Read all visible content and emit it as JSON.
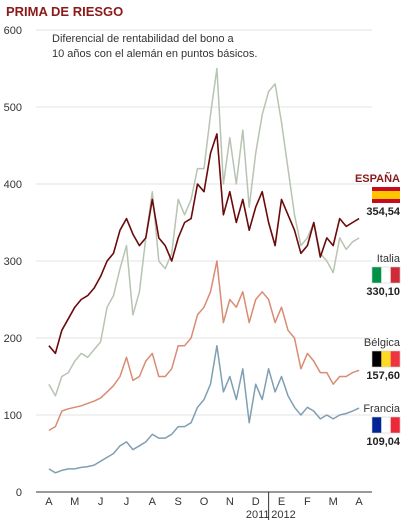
{
  "chart_data": {
    "type": "line",
    "title": "PRIMA DE RIESGO",
    "subtitle_lines": [
      "Diferencial de rentabilidad del bono a",
      "10 años  con el alemán en puntos básicos."
    ],
    "ylim": [
      0,
      600
    ],
    "yticks": [
      0,
      100,
      200,
      300,
      400,
      500,
      600
    ],
    "month_labels": [
      "A",
      "M",
      "J",
      "J",
      "A",
      "S",
      "O",
      "N",
      "D",
      "E",
      "F",
      "M",
      "A"
    ],
    "year_labels": [
      "2011",
      "2012"
    ],
    "x_count": 13,
    "colors": {
      "espana": "#6b0a0a",
      "italia": "#b7c4b2",
      "belgica": "#d98b73",
      "francia": "#7f9fb4"
    },
    "series": [
      {
        "key": "espana",
        "name": "ESPAÑA",
        "final_label": "354,54",
        "flag": [
          "#c60b1e",
          "#ffc400",
          "#c60b1e"
        ],
        "x": [
          0,
          0.25,
          0.5,
          0.75,
          1,
          1.25,
          1.5,
          1.75,
          2,
          2.25,
          2.5,
          2.75,
          3,
          3.25,
          3.5,
          3.75,
          4,
          4.25,
          4.5,
          4.75,
          5,
          5.25,
          5.5,
          5.75,
          6,
          6.25,
          6.5,
          6.75,
          7,
          7.25,
          7.5,
          7.75,
          8,
          8.25,
          8.5,
          8.75,
          9,
          9.25,
          9.5,
          9.75,
          10,
          10.25,
          10.5,
          10.75,
          11,
          11.25,
          11.5,
          11.75,
          12
        ],
        "values": [
          190,
          180,
          210,
          225,
          240,
          250,
          255,
          265,
          280,
          300,
          310,
          340,
          355,
          335,
          320,
          330,
          380,
          330,
          320,
          300,
          330,
          350,
          355,
          400,
          390,
          440,
          465,
          360,
          390,
          350,
          380,
          340,
          370,
          390,
          350,
          320,
          380,
          360,
          340,
          310,
          320,
          350,
          305,
          330,
          320,
          355,
          345,
          350,
          355
        ]
      },
      {
        "key": "italia",
        "name": "Italia",
        "final_label": "330,10",
        "flag": [
          "#009246",
          "#ffffff",
          "#ce2b37"
        ],
        "x": [
          0,
          0.25,
          0.5,
          0.75,
          1,
          1.25,
          1.5,
          1.75,
          2,
          2.25,
          2.5,
          2.75,
          3,
          3.25,
          3.5,
          3.75,
          4,
          4.25,
          4.5,
          4.75,
          5,
          5.25,
          5.5,
          5.75,
          6,
          6.25,
          6.5,
          6.75,
          7,
          7.25,
          7.5,
          7.75,
          8,
          8.25,
          8.5,
          8.75,
          9,
          9.25,
          9.5,
          9.75,
          10,
          10.25,
          10.5,
          10.75,
          11,
          11.25,
          11.5,
          11.75,
          12
        ],
        "values": [
          140,
          125,
          150,
          155,
          170,
          180,
          175,
          185,
          195,
          240,
          255,
          290,
          320,
          230,
          260,
          330,
          390,
          300,
          290,
          310,
          380,
          360,
          380,
          420,
          420,
          490,
          550,
          400,
          460,
          400,
          470,
          370,
          440,
          490,
          520,
          530,
          480,
          420,
          360,
          320,
          330,
          350,
          310,
          300,
          285,
          330,
          315,
          325,
          330
        ]
      },
      {
        "key": "belgica",
        "name": "Bélgica",
        "final_label": "157,60",
        "flag": [
          "#000000",
          "#fdda24",
          "#ef3340"
        ],
        "x": [
          0,
          0.25,
          0.5,
          0.75,
          1,
          1.25,
          1.5,
          1.75,
          2,
          2.25,
          2.5,
          2.75,
          3,
          3.25,
          3.5,
          3.75,
          4,
          4.25,
          4.5,
          4.75,
          5,
          5.25,
          5.5,
          5.75,
          6,
          6.25,
          6.5,
          6.75,
          7,
          7.25,
          7.5,
          7.75,
          8,
          8.25,
          8.5,
          8.75,
          9,
          9.25,
          9.5,
          9.75,
          10,
          10.25,
          10.5,
          10.75,
          11,
          11.25,
          11.5,
          11.75,
          12
        ],
        "values": [
          80,
          85,
          105,
          108,
          110,
          112,
          115,
          118,
          122,
          130,
          138,
          150,
          175,
          145,
          150,
          170,
          180,
          150,
          150,
          160,
          190,
          190,
          200,
          230,
          240,
          260,
          300,
          220,
          250,
          240,
          260,
          220,
          250,
          260,
          250,
          220,
          240,
          210,
          200,
          160,
          180,
          170,
          155,
          155,
          140,
          150,
          150,
          155,
          158
        ]
      },
      {
        "key": "francia",
        "name": "Francia",
        "final_label": "109,04",
        "flag": [
          "#002395",
          "#ffffff",
          "#ed2939"
        ],
        "x": [
          0,
          0.25,
          0.5,
          0.75,
          1,
          1.25,
          1.5,
          1.75,
          2,
          2.25,
          2.5,
          2.75,
          3,
          3.25,
          3.5,
          3.75,
          4,
          4.25,
          4.5,
          4.75,
          5,
          5.25,
          5.5,
          5.75,
          6,
          6.25,
          6.5,
          6.75,
          7,
          7.25,
          7.5,
          7.75,
          8,
          8.25,
          8.5,
          8.75,
          9,
          9.25,
          9.5,
          9.75,
          10,
          10.25,
          10.5,
          10.75,
          11,
          11.25,
          11.5,
          11.75,
          12
        ],
        "values": [
          30,
          25,
          28,
          30,
          30,
          32,
          33,
          35,
          40,
          45,
          50,
          60,
          65,
          55,
          60,
          65,
          75,
          70,
          70,
          75,
          85,
          85,
          90,
          110,
          120,
          140,
          190,
          130,
          150,
          120,
          160,
          90,
          140,
          120,
          160,
          130,
          150,
          125,
          110,
          100,
          110,
          105,
          95,
          100,
          95,
          100,
          102,
          105,
          109
        ]
      }
    ]
  }
}
